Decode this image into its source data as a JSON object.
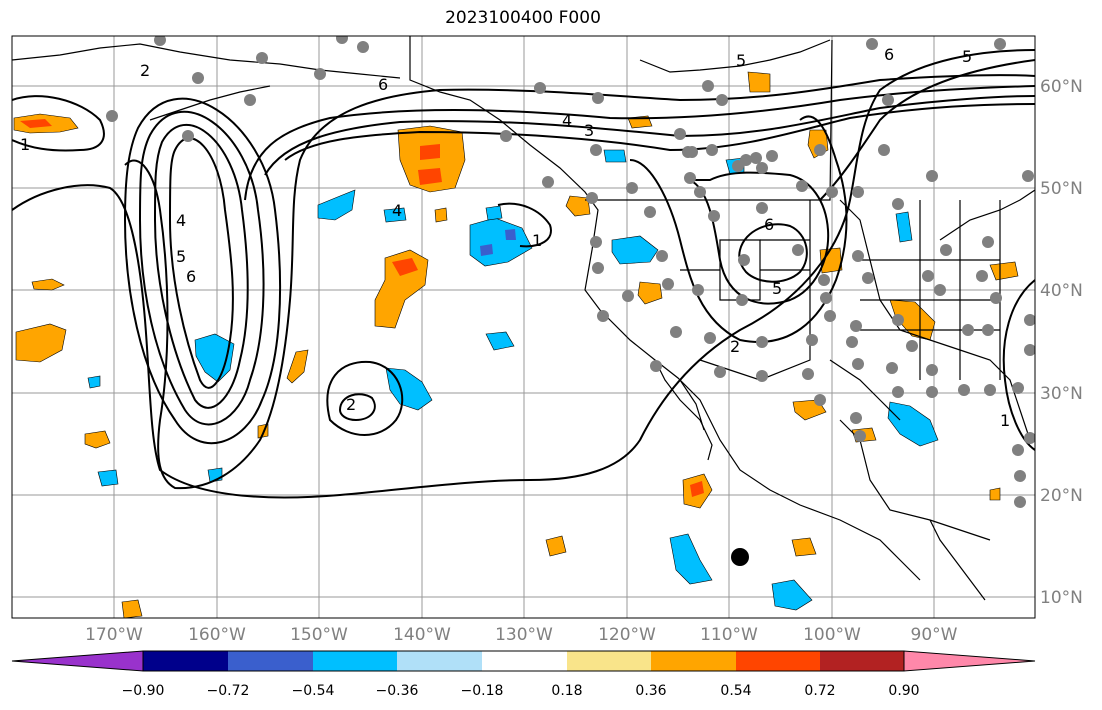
{
  "title": "2023100400 F000",
  "lat_labels": [
    "60°N",
    "50°N",
    "40°N",
    "30°N",
    "20°N",
    "10°N"
  ],
  "lon_labels": [
    "170°W",
    "160°W",
    "150°W",
    "140°W",
    "130°W",
    "120°W",
    "110°W",
    "100°W",
    "90°W"
  ],
  "colorbar": {
    "colors": [
      "#9932cc",
      "#00008b",
      "#3a5fcd",
      "#00bfff",
      "#b0e0f8",
      "#ffffff",
      "#f9e48a",
      "#ffa500",
      "#ff4500",
      "#b22222",
      "#ff88aa"
    ],
    "tick_labels": [
      "−0.90",
      "−0.72",
      "−0.54",
      "−0.36",
      "−0.18",
      "0.18",
      "0.36",
      "0.54",
      "0.72",
      "0.90"
    ]
  },
  "contour_labels": [
    "1",
    "2",
    "4",
    "5",
    "6",
    "6",
    "4",
    "3",
    "5",
    "6",
    "5",
    "2",
    "5",
    "2",
    "1",
    "4",
    "1",
    "6"
  ],
  "marker": "storm-center"
}
